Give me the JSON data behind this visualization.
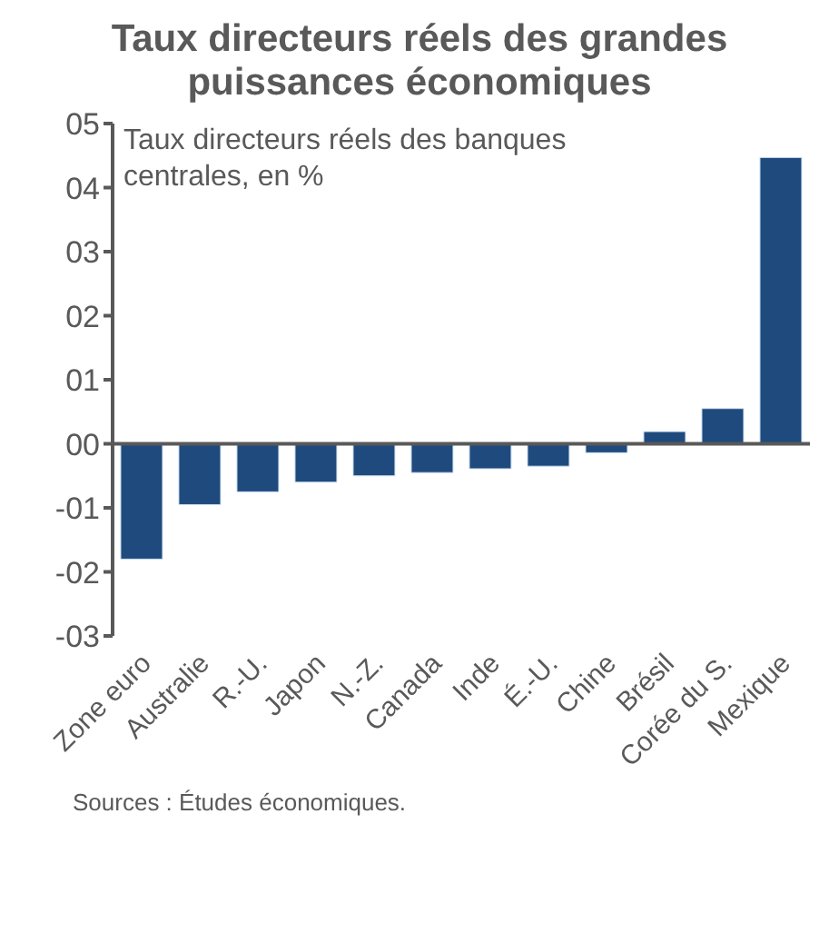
{
  "chart_data": {
    "type": "bar",
    "title": "Taux directeurs réels des grandes puissances économiques",
    "subtitle": "Taux directeurs réels des banques centrales, en %",
    "categories": [
      "Zone euro",
      "Australie",
      "R.-U.",
      "Japon",
      "N.-Z.",
      "Canada",
      "Inde",
      "É.-U.",
      "Chine",
      "Brésil",
      "Corée du S.",
      "Mexique"
    ],
    "values": [
      -1.8,
      -0.95,
      -0.75,
      -0.6,
      -0.5,
      -0.45,
      -0.39,
      -0.35,
      -0.14,
      0.19,
      0.55,
      4.47
    ],
    "color": "#1f4a7d",
    "ylim": [
      -3,
      5
    ],
    "yticks": [
      {
        "value": -3,
        "label": "-03"
      },
      {
        "value": -2,
        "label": "-02"
      },
      {
        "value": -1,
        "label": "-01"
      },
      {
        "value": 0,
        "label": "00"
      },
      {
        "value": 1,
        "label": "01"
      },
      {
        "value": 2,
        "label": "02"
      },
      {
        "value": 3,
        "label": "03"
      },
      {
        "value": 4,
        "label": "04"
      },
      {
        "value": 5,
        "label": "05"
      }
    ],
    "ref_lines": [
      {
        "axis": "y",
        "value": 0,
        "color": "#595959"
      }
    ],
    "annotations": [
      "Sources : Études économiques."
    ]
  }
}
